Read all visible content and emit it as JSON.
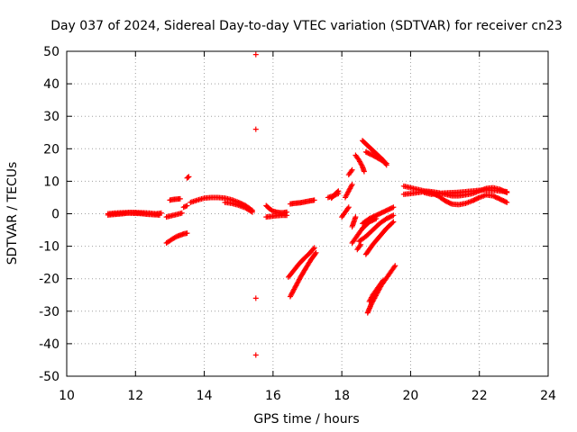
{
  "chart_data": {
    "type": "scatter",
    "title": "Day 037 of 2024, Sidereal Day-to-day VTEC variation (SDTVAR) for receiver cn23",
    "xlabel": "GPS time / hours",
    "ylabel": "SDTVAR / TECUs",
    "xlim": [
      10,
      24
    ],
    "ylim": [
      -50,
      50
    ],
    "xticks": [
      10,
      12,
      14,
      16,
      18,
      20,
      22,
      24
    ],
    "yticks": [
      -50,
      -40,
      -30,
      -20,
      -10,
      0,
      10,
      20,
      30,
      40,
      50
    ],
    "grid": true,
    "marker": "+",
    "color": "#ff0000",
    "segments": [
      {
        "x": [
          11.2,
          11.4,
          11.6,
          11.8,
          12.0,
          12.2,
          12.4,
          12.6,
          12.75
        ],
        "y": [
          0.0,
          0.2,
          0.3,
          0.4,
          0.4,
          0.3,
          0.2,
          0.0,
          0.2
        ]
      },
      {
        "x": [
          11.2,
          11.5,
          11.8,
          12.1,
          12.4,
          12.7
        ],
        "y": [
          -0.4,
          -0.1,
          0.2,
          0.1,
          -0.2,
          -0.4
        ]
      },
      {
        "x": [
          12.9,
          13.0,
          13.1,
          13.2,
          13.3,
          13.4,
          13.5
        ],
        "y": [
          -9.0,
          -8.3,
          -7.6,
          -7.0,
          -6.6,
          -6.2,
          -6.0
        ]
      },
      {
        "x": [
          12.9,
          13.05,
          13.2,
          13.35
        ],
        "y": [
          -1.0,
          -0.6,
          -0.2,
          0.2
        ]
      },
      {
        "x": [
          13.0,
          13.1,
          13.2,
          13.3
        ],
        "y": [
          4.2,
          4.4,
          4.5,
          4.6
        ]
      },
      {
        "x": [
          13.5,
          13.55
        ],
        "y": [
          11.0,
          11.4
        ]
      },
      {
        "x": [
          13.4,
          13.5
        ],
        "y": [
          2.0,
          2.5
        ]
      },
      {
        "x": [
          13.6,
          13.8,
          14.0,
          14.2,
          14.4,
          14.6,
          14.8,
          15.0,
          15.2,
          15.4
        ],
        "y": [
          3.5,
          4.2,
          4.8,
          5.0,
          5.0,
          4.8,
          4.3,
          3.5,
          2.5,
          1.0
        ]
      },
      {
        "x": [
          14.6,
          14.8,
          15.0,
          15.2,
          15.4
        ],
        "y": [
          3.5,
          3.2,
          2.6,
          1.8,
          0.5
        ]
      },
      {
        "x": [
          15.5,
          15.5,
          15.5,
          15.5
        ],
        "y": [
          49.0,
          26.0,
          -26.0,
          -43.5
        ]
      },
      {
        "x": [
          15.8,
          15.9,
          16.0,
          16.1,
          16.2,
          16.3,
          16.4
        ],
        "y": [
          2.5,
          1.5,
          0.8,
          0.5,
          0.3,
          0.3,
          0.5
        ]
      },
      {
        "x": [
          15.8,
          15.95,
          16.1,
          16.25,
          16.4
        ],
        "y": [
          -1.0,
          -0.8,
          -0.6,
          -0.5,
          -0.5
        ]
      },
      {
        "x": [
          16.5,
          16.6,
          16.7,
          16.8,
          16.9,
          17.0,
          17.1,
          17.2
        ],
        "y": [
          3.0,
          3.2,
          3.3,
          3.4,
          3.6,
          3.8,
          4.0,
          4.2
        ]
      },
      {
        "x": [
          16.5,
          16.65,
          16.8,
          16.95,
          17.1,
          17.25
        ],
        "y": [
          -25.5,
          -22.5,
          -19.5,
          -16.8,
          -14.2,
          -12.0
        ]
      },
      {
        "x": [
          16.45,
          16.6,
          16.75,
          16.9,
          17.05,
          17.2
        ],
        "y": [
          -19.5,
          -17.5,
          -15.5,
          -13.8,
          -12.3,
          -10.5
        ]
      },
      {
        "x": [
          17.7,
          17.8,
          17.9
        ],
        "y": [
          4.8,
          6.0,
          7.0
        ]
      },
      {
        "x": [
          17.6,
          17.75,
          17.9
        ],
        "y": [
          5.0,
          5.5,
          6.2
        ]
      },
      {
        "x": [
          18.0,
          18.1,
          18.2
        ],
        "y": [
          -1.0,
          0.5,
          2.0
        ]
      },
      {
        "x": [
          18.1,
          18.2,
          18.3
        ],
        "y": [
          5.0,
          7.0,
          9.0
        ]
      },
      {
        "x": [
          18.2,
          18.3
        ],
        "y": [
          12.0,
          13.5
        ]
      },
      {
        "x": [
          18.4,
          18.5,
          18.6,
          18.65
        ],
        "y": [
          18.0,
          16.5,
          14.5,
          13.0
        ]
      },
      {
        "x": [
          18.6,
          18.7,
          18.8,
          18.9,
          19.0,
          19.1,
          19.2,
          19.3
        ],
        "y": [
          22.5,
          21.5,
          20.5,
          19.5,
          18.5,
          17.5,
          16.5,
          15.0
        ]
      },
      {
        "x": [
          18.7,
          18.9,
          19.1,
          19.3
        ],
        "y": [
          19.0,
          18.0,
          16.8,
          15.5
        ]
      },
      {
        "x": [
          18.3,
          18.4,
          18.5,
          18.6,
          18.7,
          18.8,
          18.9,
          19.0
        ],
        "y": [
          -9.0,
          -7.5,
          -6.0,
          -4.5,
          -3.5,
          -2.5,
          -2.0,
          -1.5
        ]
      },
      {
        "x": [
          18.5,
          18.7,
          18.9,
          19.1,
          19.3,
          19.5
        ],
        "y": [
          -8.5,
          -7.0,
          -5.0,
          -3.0,
          -1.5,
          -0.5
        ]
      },
      {
        "x": [
          18.6,
          18.8,
          19.0,
          19.2,
          19.4,
          19.5
        ],
        "y": [
          -3.0,
          -1.5,
          -0.5,
          0.5,
          1.5,
          2.0
        ]
      },
      {
        "x": [
          18.3,
          18.35,
          18.4
        ],
        "y": [
          -4.0,
          -2.5,
          -1.0
        ]
      },
      {
        "x": [
          18.7,
          18.9,
          19.1,
          19.3,
          19.5
        ],
        "y": [
          -12.5,
          -9.5,
          -7.0,
          -4.5,
          -2.5
        ]
      },
      {
        "x": [
          18.45,
          18.55
        ],
        "y": [
          -11.0,
          -9.5
        ]
      },
      {
        "x": [
          18.75,
          18.85,
          18.95,
          19.05,
          19.15,
          19.25,
          19.35,
          19.45,
          19.55
        ],
        "y": [
          -30.5,
          -28.0,
          -26.0,
          -24.0,
          -22.0,
          -20.5,
          -19.0,
          -17.5,
          -16.0
        ]
      },
      {
        "x": [
          18.8,
          18.9,
          19.0,
          19.1,
          19.2
        ],
        "y": [
          -27.0,
          -25.0,
          -23.5,
          -22.0,
          -20.5
        ]
      },
      {
        "x": [
          19.8,
          20.0,
          20.2,
          20.4,
          20.6,
          20.8,
          21.0,
          21.2,
          21.4,
          21.6,
          21.8,
          22.0,
          22.2,
          22.4,
          22.6,
          22.8
        ],
        "y": [
          8.5,
          8.0,
          7.5,
          7.0,
          6.8,
          6.5,
          6.0,
          5.5,
          5.5,
          5.8,
          6.2,
          7.0,
          7.8,
          8.0,
          7.5,
          6.5
        ]
      },
      {
        "x": [
          19.8,
          20.0,
          20.2,
          20.4,
          20.6,
          20.8,
          21.0,
          21.2,
          21.4,
          21.6,
          21.8,
          22.0,
          22.2,
          22.4,
          22.6,
          22.8
        ],
        "y": [
          6.0,
          6.2,
          6.5,
          6.8,
          6.5,
          5.5,
          4.0,
          3.0,
          2.8,
          3.2,
          4.0,
          5.0,
          5.8,
          5.5,
          4.5,
          3.5
        ]
      },
      {
        "x": [
          20.4,
          20.6,
          20.8,
          21.0,
          21.2,
          21.4,
          21.6,
          21.8,
          22.0,
          22.2,
          22.4,
          22.6,
          22.8
        ],
        "y": [
          6.5,
          6.0,
          6.2,
          6.4,
          6.5,
          6.6,
          6.8,
          7.0,
          7.2,
          7.4,
          7.2,
          7.0,
          6.8
        ]
      }
    ]
  }
}
